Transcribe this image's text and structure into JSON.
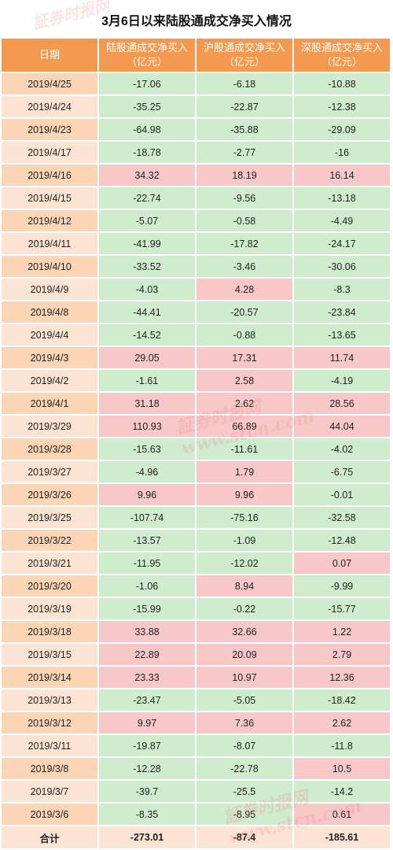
{
  "title": "3月6日以来陆股通成交净买入情况",
  "watermark": {
    "text": "証券时报网",
    "url": "www.stcn.com"
  },
  "columns": {
    "date": "日期",
    "lugutong": "陆股通成交净买入（亿元）",
    "hugutong": "沪股通成交净买入（亿元）",
    "shengutong": "深股通成交净买入（亿元）"
  },
  "rows": [
    {
      "date": "2019/4/25",
      "lu": "-17.06",
      "hu": "-6.18",
      "shen": "-10.88"
    },
    {
      "date": "2019/4/24",
      "lu": "-35.25",
      "hu": "-22.87",
      "shen": "-12.38"
    },
    {
      "date": "2019/4/23",
      "lu": "-64.98",
      "hu": "-35.88",
      "shen": "-29.09"
    },
    {
      "date": "2019/4/17",
      "lu": "-18.78",
      "hu": "-2.77",
      "shen": "-16"
    },
    {
      "date": "2019/4/16",
      "lu": "34.32",
      "hu": "18.19",
      "shen": "16.14"
    },
    {
      "date": "2019/4/15",
      "lu": "-22.74",
      "hu": "-9.56",
      "shen": "-13.18"
    },
    {
      "date": "2019/4/12",
      "lu": "-5.07",
      "hu": "-0.58",
      "shen": "-4.49"
    },
    {
      "date": "2019/4/11",
      "lu": "-41.99",
      "hu": "-17.82",
      "shen": "-24.17"
    },
    {
      "date": "2019/4/10",
      "lu": "-33.52",
      "hu": "-3.46",
      "shen": "-30.06"
    },
    {
      "date": "2019/4/9",
      "lu": "-4.03",
      "hu": "4.28",
      "shen": "-8.3"
    },
    {
      "date": "2019/4/8",
      "lu": "-44.41",
      "hu": "-20.57",
      "shen": "-23.84"
    },
    {
      "date": "2019/4/4",
      "lu": "-14.52",
      "hu": "-0.88",
      "shen": "-13.65"
    },
    {
      "date": "2019/4/3",
      "lu": "29.05",
      "hu": "17.31",
      "shen": "11.74"
    },
    {
      "date": "2019/4/2",
      "lu": "-1.61",
      "hu": "2.58",
      "shen": "-4.19"
    },
    {
      "date": "2019/4/1",
      "lu": "31.18",
      "hu": "2.62",
      "shen": "28.56"
    },
    {
      "date": "2019/3/29",
      "lu": "110.93",
      "hu": "66.89",
      "shen": "44.04"
    },
    {
      "date": "2019/3/28",
      "lu": "-15.63",
      "hu": "-11.61",
      "shen": "-4.02"
    },
    {
      "date": "2019/3/27",
      "lu": "-4.96",
      "hu": "1.79",
      "shen": "-6.75"
    },
    {
      "date": "2019/3/26",
      "lu": "9.96",
      "hu": "9.96",
      "shen": "-0.01"
    },
    {
      "date": "2019/3/25",
      "lu": "-107.74",
      "hu": "-75.16",
      "shen": "-32.58"
    },
    {
      "date": "2019/3/22",
      "lu": "-13.57",
      "hu": "-1.09",
      "shen": "-12.48"
    },
    {
      "date": "2019/3/21",
      "lu": "-11.95",
      "hu": "-12.02",
      "shen": "0.07"
    },
    {
      "date": "2019/3/20",
      "lu": "-1.06",
      "hu": "8.94",
      "shen": "-9.99"
    },
    {
      "date": "2019/3/19",
      "lu": "-15.99",
      "hu": "-0.22",
      "shen": "-15.77"
    },
    {
      "date": "2019/3/18",
      "lu": "33.88",
      "hu": "32.66",
      "shen": "1.22"
    },
    {
      "date": "2019/3/15",
      "lu": "22.89",
      "hu": "20.09",
      "shen": "2.79"
    },
    {
      "date": "2019/3/14",
      "lu": "23.33",
      "hu": "10.97",
      "shen": "12.36"
    },
    {
      "date": "2019/3/13",
      "lu": "-23.47",
      "hu": "-5.05",
      "shen": "-18.42"
    },
    {
      "date": "2019/3/12",
      "lu": "9.97",
      "hu": "7.36",
      "shen": "2.62"
    },
    {
      "date": "2019/3/11",
      "lu": "-19.87",
      "hu": "-8.07",
      "shen": "-11.8"
    },
    {
      "date": "2019/3/8",
      "lu": "-12.28",
      "hu": "-22.78",
      "shen": "10.5"
    },
    {
      "date": "2019/3/7",
      "lu": "-39.7",
      "hu": "-25.5",
      "shen": "-14.2"
    },
    {
      "date": "2019/3/6",
      "lu": "-8.35",
      "hu": "-8.95",
      "shen": "0.61"
    }
  ],
  "total": {
    "label": "合计",
    "lu": "-273.01",
    "hu": "-87.4",
    "shen": "-185.61"
  },
  "colors": {
    "header": "#f49a50",
    "date_cell_odd": "#fcd5b5",
    "date_cell_even": "#fce4d4",
    "positive": "#f8c8c8",
    "negative": "#cfeccf"
  }
}
